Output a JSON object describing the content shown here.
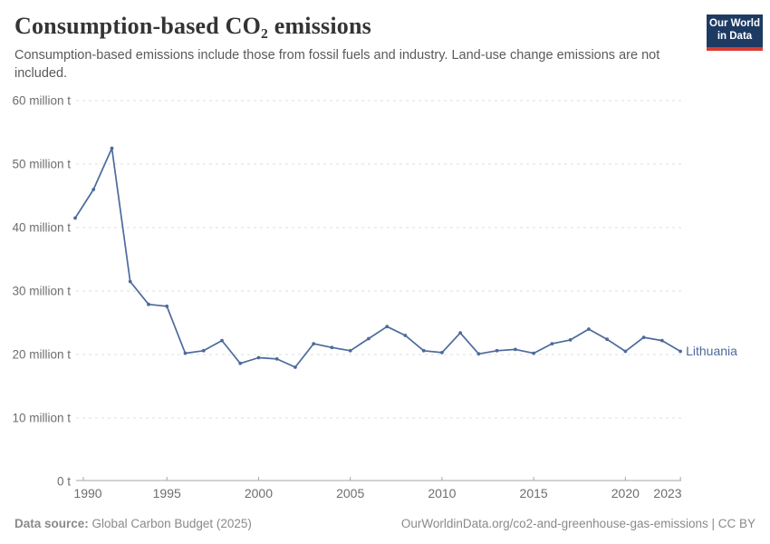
{
  "header": {
    "title": "Consumption-based CO₂ emissions",
    "subtitle": "Consumption-based emissions include those from fossil fuels and industry. Land-use change emissions are not included.",
    "logo": {
      "line1": "Our World",
      "line2": "in Data",
      "bg_color": "#1d3a63",
      "bar_color": "#d93b31"
    }
  },
  "chart_data": {
    "type": "line",
    "title": "Consumption-based CO₂ emissions",
    "unit": "million t",
    "entity": "Lithuania",
    "line_color": "#4c6a9c",
    "grid": "dashed",
    "xlim": [
      1990,
      2023
    ],
    "ylim": [
      0,
      60
    ],
    "x": [
      1990,
      1991,
      1992,
      1993,
      1994,
      1995,
      1996,
      1997,
      1998,
      1999,
      2000,
      2001,
      2002,
      2003,
      2004,
      2005,
      2006,
      2007,
      2008,
      2009,
      2010,
      2011,
      2012,
      2013,
      2014,
      2015,
      2016,
      2017,
      2018,
      2019,
      2020,
      2021,
      2022,
      2023
    ],
    "series": [
      {
        "name": "Lithuania",
        "values": [
          41.5,
          46.0,
          52.5,
          31.5,
          27.9,
          27.6,
          20.2,
          20.6,
          22.2,
          18.6,
          19.5,
          19.3,
          18.0,
          21.7,
          21.1,
          20.6,
          22.5,
          24.4,
          23.0,
          20.6,
          20.3,
          23.4,
          20.1,
          20.6,
          20.8,
          20.2,
          21.7,
          22.3,
          24.0,
          22.4,
          20.5,
          22.7,
          22.2,
          20.5
        ]
      }
    ],
    "yticks": [
      0,
      10,
      20,
      30,
      40,
      50,
      60
    ],
    "ytick_labels": [
      "0 t",
      "10 million t",
      "20 million t",
      "30 million t",
      "40 million t",
      "50 million t",
      "60 million t"
    ],
    "xticks": [
      1990,
      1995,
      2000,
      2005,
      2010,
      2015,
      2020,
      2023
    ],
    "legend_position": "end-of-line-label"
  },
  "footer": {
    "source_label": "Data source:",
    "source_value": "Global Carbon Budget (2025)",
    "credit": "OurWorldinData.org/co2-and-greenhouse-gas-emissions | CC BY"
  }
}
